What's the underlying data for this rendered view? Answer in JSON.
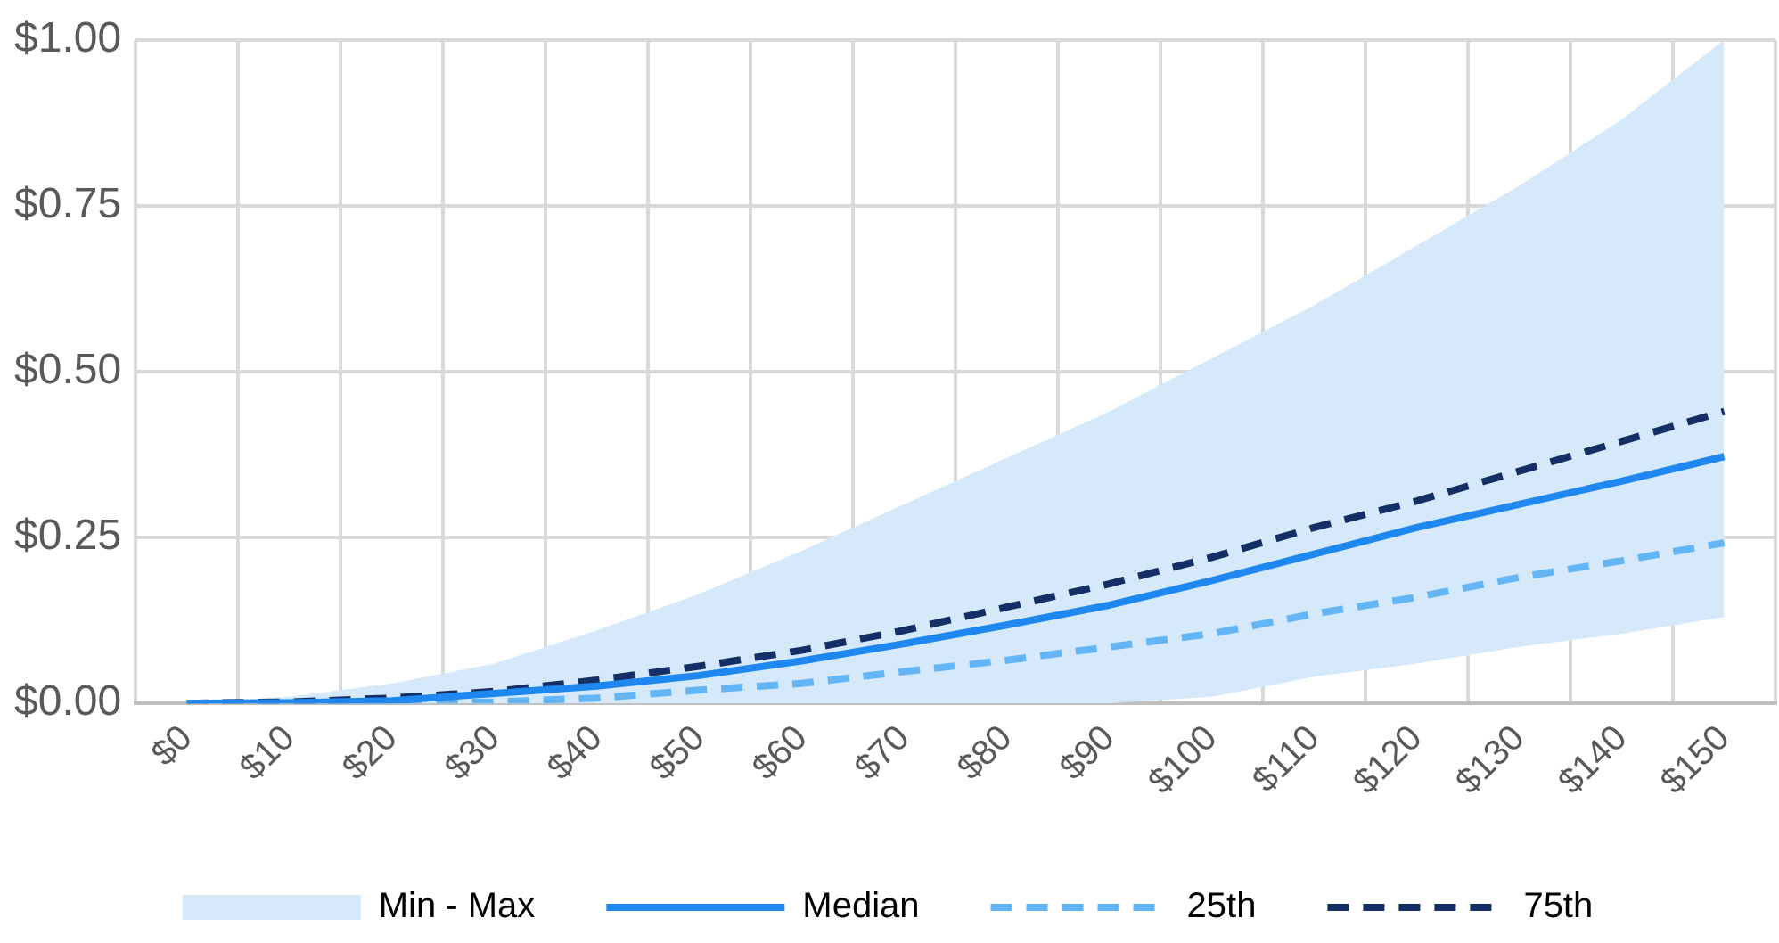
{
  "chart_data": {
    "type": "line",
    "categories": [
      "$0",
      "$10",
      "$20",
      "$30",
      "$40",
      "$50",
      "$60",
      "$70",
      "$80",
      "$90",
      "$100",
      "$110",
      "$120",
      "$130",
      "$140",
      "$150"
    ],
    "ylim": [
      0,
      1
    ],
    "yticks": [
      {
        "value": 0,
        "label": "$0.00"
      },
      {
        "value": 0.25,
        "label": "$0.25"
      },
      {
        "value": 0.5,
        "label": "$0.50"
      },
      {
        "value": 0.75,
        "label": "$0.75"
      },
      {
        "value": 1,
        "label": "$1.00"
      }
    ],
    "grid": true,
    "legend": "bottom",
    "marker": "none",
    "series": [
      {
        "name": "Min - Max",
        "type": "area",
        "color": "#d6e9fb",
        "values": [
          null,
          null,
          null,
          null,
          null,
          null,
          null,
          null,
          null,
          null,
          null,
          null,
          null,
          null,
          null,
          null
        ],
        "lower": [
          0,
          0,
          0,
          0,
          0,
          0,
          0,
          0,
          0,
          0,
          0.01,
          0.04,
          0.06,
          0.085,
          0.105,
          0.13
        ],
        "upper": [
          0,
          0.01,
          0.03,
          0.06,
          0.11,
          0.165,
          0.23,
          0.3,
          0.37,
          0.44,
          0.52,
          0.6,
          0.69,
          0.78,
          0.88,
          1.0
        ]
      },
      {
        "name": "Median",
        "type": "line",
        "line_style": "solid",
        "color": "#1e88f0",
        "values": [
          0,
          0.001,
          0.004,
          0.015,
          0.026,
          0.042,
          0.064,
          0.09,
          0.118,
          0.148,
          0.185,
          0.225,
          0.265,
          0.3,
          0.335,
          0.372
        ]
      },
      {
        "name": "25th",
        "type": "line",
        "line_style": "dashed",
        "color": "#64b5f6",
        "values": [
          0,
          0,
          0,
          0.002,
          0.008,
          0.02,
          0.03,
          0.048,
          0.065,
          0.085,
          0.105,
          0.135,
          0.16,
          0.19,
          0.215,
          0.242
        ]
      },
      {
        "name": "75th",
        "type": "line",
        "line_style": "dashed",
        "color": "#142f66",
        "values": [
          0,
          0.002,
          0.008,
          0.018,
          0.035,
          0.056,
          0.08,
          0.11,
          0.145,
          0.18,
          0.22,
          0.265,
          0.305,
          0.35,
          0.395,
          0.44
        ]
      }
    ]
  }
}
